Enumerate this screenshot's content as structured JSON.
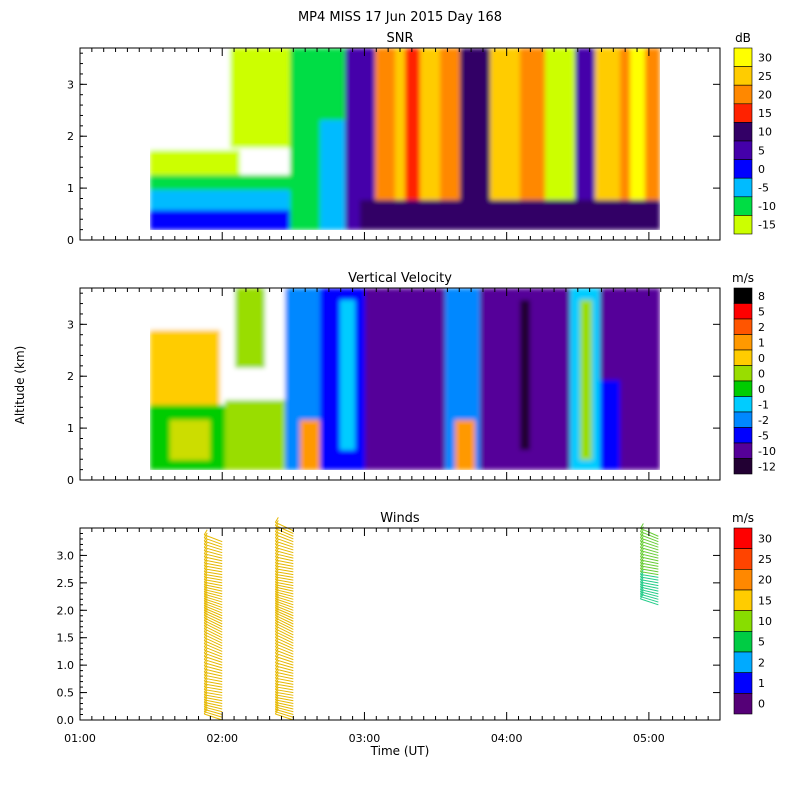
{
  "title": "MP4 MISS  17 Jun 2015 Day 168",
  "xlabel": "Time (UT)",
  "ylabel": "Altitude (km)",
  "x_ticks": [
    "01:00",
    "02:00",
    "03:00",
    "04:00",
    "05:00"
  ],
  "chart_data": [
    {
      "type": "heatmap",
      "title": "SNR",
      "x_range": [
        "01:00",
        "05:30"
      ],
      "data_x_range": [
        "01:30",
        "05:04"
      ],
      "ylim": [
        0,
        3.7
      ],
      "data_y_range": [
        0.15,
        3.7
      ],
      "y_ticks": [
        "0",
        "1",
        "2",
        "3"
      ],
      "colorbar": {
        "unit": "dB",
        "levels": [
          "30",
          "25",
          "20",
          "15",
          "10",
          "5",
          "0",
          "-5",
          "-10",
          "-15"
        ],
        "colors": [
          "#ffff00",
          "#ffcc00",
          "#ff8800",
          "#ff2200",
          "#330066",
          "#4400aa",
          "#0000ff",
          "#00bbff",
          "#00dd44",
          "#ccff00"
        ]
      }
    },
    {
      "type": "heatmap",
      "title": "Vertical Velocity",
      "x_range": [
        "01:00",
        "05:30"
      ],
      "data_x_range": [
        "01:30",
        "05:04"
      ],
      "ylim": [
        0,
        3.7
      ],
      "data_y_range": [
        0.15,
        3.7
      ],
      "y_ticks": [
        "0",
        "1",
        "2",
        "3"
      ],
      "colorbar": {
        "unit": "m/s",
        "levels": [
          "8",
          "5",
          "2",
          "1",
          "0",
          "0",
          "0",
          "-1",
          "-2",
          "-5",
          "-10",
          "-12"
        ],
        "colors": [
          "#000000",
          "#ff0000",
          "#ff5500",
          "#ff9900",
          "#ffcc00",
          "#99dd00",
          "#00cc00",
          "#00ccff",
          "#0088ff",
          "#0000ff",
          "#550099",
          "#220033"
        ]
      }
    },
    {
      "type": "barbs",
      "title": "Winds",
      "x_range": [
        "01:00",
        "05:30"
      ],
      "ylim": [
        0,
        3.5
      ],
      "y_ticks": [
        "0.0",
        "0.5",
        "1.0",
        "1.5",
        "2.0",
        "2.5",
        "3.0"
      ],
      "series": [
        {
          "time": "02:00",
          "alt_range": [
            0.0,
            3.25
          ],
          "profile": [
            [
              0.0,
              "#e6b800"
            ],
            [
              1.8,
              "#e6b800"
            ],
            [
              3.25,
              "#8fcc33"
            ]
          ]
        },
        {
          "time": "02:30",
          "alt_range": [
            0.0,
            3.45
          ],
          "profile": [
            [
              0.0,
              "#e6b800"
            ],
            [
              1.8,
              "#e6b800"
            ],
            [
              3.45,
              "#8fcc33"
            ]
          ]
        },
        {
          "time": "05:04",
          "alt_range": [
            2.1,
            3.35
          ],
          "profile": [
            [
              2.1,
              "#22cc88"
            ],
            [
              2.6,
              "#66cc33"
            ],
            [
              3.35,
              "#ee8800"
            ]
          ]
        }
      ],
      "colorbar": {
        "unit": "m/s",
        "levels": [
          "30",
          "25",
          "20",
          "15",
          "10",
          "5",
          "2",
          "1",
          "0"
        ],
        "colors": [
          "#ff0000",
          "#ff4400",
          "#ff8800",
          "#ffcc00",
          "#88dd00",
          "#00cc44",
          "#00aaff",
          "#0000ff",
          "#550077"
        ]
      }
    }
  ]
}
